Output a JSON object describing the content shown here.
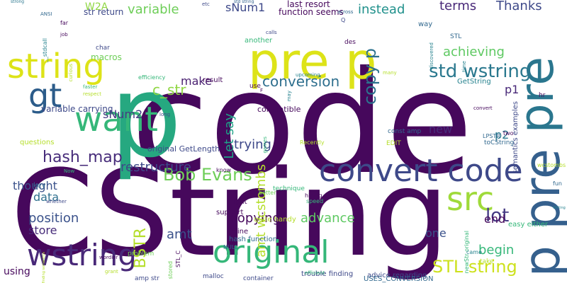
{
  "colors": {
    "background": "#ffffff",
    "deep_purple": "#46085c",
    "indigo": "#3e4989",
    "slate_blue": "#31688e",
    "teal": "#26828e",
    "green_teal": "#1f9e89",
    "green": "#35b779",
    "light_green": "#6ece58",
    "yellow_green": "#b5de2b",
    "yellow": "#e0e020"
  },
  "words": [
    {
      "text": "code",
      "color": "#46085c",
      "vertical": false
    },
    {
      "text": "CString",
      "color": "#46085c",
      "vertical": false
    },
    {
      "text": "p",
      "color": "#26a880",
      "vertical": false
    },
    {
      "text": "std string",
      "color": "#2c5c8a",
      "vertical": false
    },
    {
      "text": "strong",
      "color": "#2a768e",
      "vertical": false
    },
    {
      "text": "pre p",
      "color": "#dde318",
      "vertical": false
    },
    {
      "text": "pre",
      "color": "#2a768e",
      "vertical": true
    },
    {
      "text": "p pre",
      "color": "#35608d",
      "vertical": true
    },
    {
      "text": "string",
      "color": "#dde318",
      "vertical": false
    },
    {
      "text": "convert code",
      "color": "#3e4989",
      "vertical": false
    },
    {
      "text": "want",
      "color": "#35b779",
      "vertical": false
    },
    {
      "text": "gt",
      "color": "#2c5c8a",
      "vertical": false
    },
    {
      "text": "original",
      "color": "#35b779",
      "vertical": false
    },
    {
      "text": "src",
      "color": "#9fda3a",
      "vertical": false
    },
    {
      "text": "wstring",
      "color": "#482878",
      "vertical": false
    },
    {
      "text": "std wstring",
      "color": "#2a788e",
      "vertical": false
    },
    {
      "text": "STL string",
      "color": "#cde11d",
      "vertical": false
    },
    {
      "text": "copy p",
      "color": "#2c728e",
      "vertical": true
    },
    {
      "text": "Bob Evans",
      "color": "#6ece58",
      "vertical": false
    },
    {
      "text": "BSTR",
      "color": "#b5de2b",
      "vertical": true
    },
    {
      "text": "lot",
      "color": "#443983",
      "vertical": false
    },
    {
      "text": "c_str",
      "color": "#90d743",
      "vertical": false
    },
    {
      "text": "hash_map",
      "color": "#472c7a",
      "vertical": false
    },
    {
      "text": "conversion",
      "color": "#2e6f8e",
      "vertical": false
    },
    {
      "text": "position",
      "color": "#3b528b",
      "vertical": false
    },
    {
      "text": "copying",
      "color": "#46085c",
      "vertical": false
    },
    {
      "text": "restructure",
      "color": "#3e4989",
      "vertical": false
    },
    {
      "text": "variable",
      "color": "#6ece58",
      "vertical": false
    },
    {
      "text": "terms",
      "color": "#482878",
      "vertical": false
    },
    {
      "text": "Thanks",
      "color": "#3e4989",
      "vertical": false
    },
    {
      "text": "instead",
      "color": "#21918c",
      "vertical": false
    },
    {
      "text": "achieving",
      "color": "#5ec962",
      "vertical": false
    },
    {
      "text": "sNum2",
      "color": "#443983",
      "vertical": false
    },
    {
      "text": "thought",
      "color": "#3b528b",
      "vertical": false
    },
    {
      "text": "Let say",
      "color": "#1fa187",
      "vertical": true
    },
    {
      "text": "trying",
      "color": "#3e4989",
      "vertical": false
    },
    {
      "text": "make",
      "color": "#481f70",
      "vertical": false
    },
    {
      "text": "new",
      "color": "#472c7a",
      "vertical": false
    },
    {
      "text": "amt wcstombs",
      "color": "#b5de2b",
      "vertical": true
    },
    {
      "text": "amt",
      "color": "#3b528b",
      "vertical": false
    },
    {
      "text": "data",
      "color": "#2e6f8e",
      "vertical": false
    },
    {
      "text": "store",
      "color": "#472c7a",
      "vertical": false
    },
    {
      "text": "advance",
      "color": "#5ec962",
      "vertical": false
    },
    {
      "text": "end",
      "color": "#46085c",
      "vertical": false
    },
    {
      "text": "begin",
      "color": "#35b779",
      "vertical": false
    },
    {
      "text": "one",
      "color": "#3b528b",
      "vertical": false
    },
    {
      "text": "p1",
      "color": "#482878",
      "vertical": false
    },
    {
      "text": "p2",
      "color": "#2a788e",
      "vertical": false
    },
    {
      "text": "stored",
      "color": "#6ece58",
      "vertical": true
    },
    {
      "text": "using",
      "color": "#46085c",
      "vertical": false
    },
    {
      "text": "sNum1",
      "color": "#3e4989",
      "vertical": false
    },
    {
      "text": "W2A",
      "color": "#90d743",
      "vertical": false
    },
    {
      "text": "str return",
      "color": "#3e4989",
      "vertical": false
    },
    {
      "text": "last resort",
      "color": "#46085c",
      "vertical": false
    },
    {
      "text": "function seems",
      "color": "#46085c",
      "vertical": false
    },
    {
      "text": "macros",
      "color": "#6ece58",
      "vertical": false
    },
    {
      "text": "variable carrying",
      "color": "#3e4989",
      "vertical": false
    },
    {
      "text": "original GetLength",
      "color": "#3e4989",
      "vertical": false
    },
    {
      "text": "compatible",
      "color": "#46085c",
      "vertical": false
    },
    {
      "text": "result",
      "color": "#46085c",
      "vertical": false
    },
    {
      "text": "questions",
      "color": "#b5de2b",
      "vertical": false
    },
    {
      "text": "key",
      "color": "#31688e",
      "vertical": false
    },
    {
      "text": "right",
      "color": "#46085c",
      "vertical": false
    },
    {
      "text": "quite handy",
      "color": "#b5de2b",
      "vertical": false
    },
    {
      "text": "inline",
      "color": "#46085c",
      "vertical": false
    },
    {
      "text": "hash function",
      "color": "#31688e",
      "vertical": false
    },
    {
      "text": "support",
      "color": "#46085c",
      "vertical": false
    },
    {
      "text": "finding semantics",
      "color": "#b5de2b",
      "vertical": true
    },
    {
      "text": "trouble finding",
      "color": "#3e4989",
      "vertical": false
    },
    {
      "text": "advice regarding",
      "color": "#3e4989",
      "vertical": false
    },
    {
      "text": "USES_CONVERSION",
      "color": "#31688e",
      "vertical": false
    },
    {
      "text": "newStr original",
      "color": "#35b779",
      "vertical": true
    },
    {
      "text": "easy either",
      "color": "#35b779",
      "vertical": false
    },
    {
      "text": "Writing",
      "color": "#26828e",
      "vertical": false
    },
    {
      "text": "semantics examples",
      "color": "#3e4989",
      "vertical": true
    },
    {
      "text": "GetString",
      "color": "#26828e",
      "vertical": false
    },
    {
      "text": "toCString",
      "color": "#31688e",
      "vertical": false
    },
    {
      "text": "const amp",
      "color": "#31688e",
      "vertical": false
    },
    {
      "text": "EDIT",
      "color": "#b5de2b",
      "vertical": false
    },
    {
      "text": "LPSTR",
      "color": "#31688e",
      "vertical": false
    },
    {
      "text": "two",
      "color": "#46085c",
      "vertical": false
    },
    {
      "text": "hr",
      "color": "#46085c",
      "vertical": false
    },
    {
      "text": "way",
      "color": "#31688e",
      "vertical": false
    },
    {
      "text": "STL",
      "color": "#31688e",
      "vertical": false
    },
    {
      "text": "des",
      "color": "#46085c",
      "vertical": false
    },
    {
      "text": "another",
      "color": "#35b779",
      "vertical": false
    },
    {
      "text": "char",
      "color": "#3e4989",
      "vertical": false
    },
    {
      "text": "malloc",
      "color": "#3e4989",
      "vertical": false
    },
    {
      "text": "amp str",
      "color": "#3e4989",
      "vertical": false
    },
    {
      "text": "container",
      "color": "#3e4989",
      "vertical": false
    },
    {
      "text": "take",
      "color": "#b5de2b",
      "vertical": false
    },
    {
      "text": "problem",
      "color": "#6ece58",
      "vertical": false
    },
    {
      "text": "STL_C",
      "color": "#46085c",
      "vertical": true
    },
    {
      "text": "NULL",
      "color": "#31688e",
      "vertical": false
    },
    {
      "text": "use",
      "color": "#46085c",
      "vertical": false
    },
    {
      "text": "know",
      "color": "#46085c",
      "vertical": false
    },
    {
      "text": "technique",
      "color": "#35b779",
      "vertical": false
    },
    {
      "text": "better",
      "color": "#6ece58",
      "vertical": false
    },
    {
      "text": "hiding",
      "color": "#46085c",
      "vertical": false
    },
    {
      "text": "speed",
      "color": "#35b779",
      "vertical": false
    },
    {
      "text": "Recently",
      "color": "#b5de2b",
      "vertical": false
    },
    {
      "text": "efficient",
      "color": "#35b779",
      "vertical": false
    },
    {
      "text": "wcstombs",
      "color": "#b5de2b",
      "vertical": false
    },
    {
      "text": "fun",
      "color": "#31688e",
      "vertical": false
    },
    {
      "text": "came",
      "color": "#26828e",
      "vertical": false
    },
    {
      "text": "grant",
      "color": "#b5de2b",
      "vertical": false
    },
    {
      "text": "wordier",
      "color": "#46085c",
      "vertical": false
    },
    {
      "text": "whether",
      "color": "#3e4989",
      "vertical": false
    },
    {
      "text": "Now",
      "color": "#35b779",
      "vertical": false
    },
    {
      "text": "long",
      "color": "#3e4989",
      "vertical": false
    },
    {
      "text": "respect",
      "color": "#b5de2b",
      "vertical": false
    },
    {
      "text": "faster",
      "color": "#35b779",
      "vertical": false
    },
    {
      "text": "efficiency",
      "color": "#35b779",
      "vertical": false
    },
    {
      "text": "far",
      "color": "#46085c",
      "vertical": false
    },
    {
      "text": "ANSI",
      "color": "#31688e",
      "vertical": false
    },
    {
      "text": "etc",
      "color": "#3e4989",
      "vertical": false
    },
    {
      "text": "across",
      "color": "#31688e",
      "vertical": false
    },
    {
      "text": "calls",
      "color": "#3e4989",
      "vertical": false
    },
    {
      "text": "job",
      "color": "#46085c",
      "vertical": false
    },
    {
      "text": "upcoming",
      "color": "#26828e",
      "vertical": false
    },
    {
      "text": "convert",
      "color": "#46085c",
      "vertical": false
    },
    {
      "text": "many",
      "color": "#b5de2b",
      "vertical": false
    },
    {
      "text": "discovered",
      "color": "#26828e",
      "vertical": true
    },
    {
      "text": "time",
      "color": "#26828e",
      "vertical": true
    },
    {
      "text": "games",
      "color": "#35b779",
      "vertical": true
    },
    {
      "text": "curious",
      "color": "#b5de2b",
      "vertical": true
    },
    {
      "text": "__stdcall",
      "color": "#26828e",
      "vertical": true
    },
    {
      "text": "Q",
      "color": "#3e4989",
      "vertical": false
    },
    {
      "text": "F",
      "color": "#46085c",
      "vertical": false
    },
    {
      "text": "may",
      "color": "#26828e",
      "vertical": true
    },
    {
      "text": "fairly",
      "color": "#26828e",
      "vertical": true
    }
  ]
}
